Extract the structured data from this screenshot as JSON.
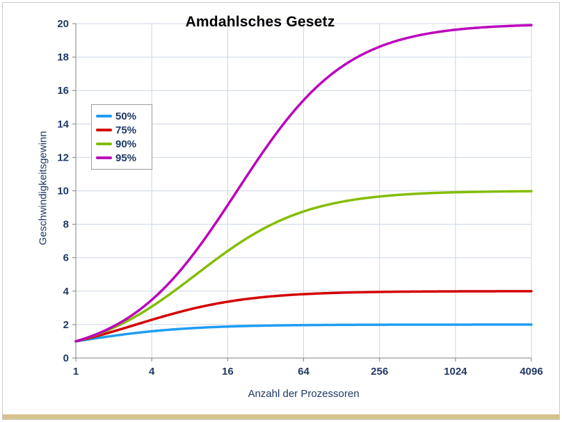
{
  "page": {
    "background": "#ffffff",
    "frame_border_color": "#c9c9c9",
    "bottom_strip_color": "#d5c38d"
  },
  "chart_data": {
    "type": "line",
    "title": "Amdahlsches Gesetz",
    "xlabel": "Anzahl der Prozessoren",
    "ylabel": "Geschwindigkeitsgewinn",
    "x_scale": "log2",
    "x_range": [
      1,
      4096
    ],
    "x_ticks": [
      1,
      4,
      16,
      64,
      256,
      1024,
      4096
    ],
    "ylim": [
      0,
      20
    ],
    "y_tick_step": 2,
    "grid": true,
    "legend_position": "upper-left-inside",
    "x": [
      1,
      2,
      4,
      8,
      16,
      32,
      64,
      128,
      256,
      512,
      1024,
      2048,
      4096
    ],
    "series": [
      {
        "name": "50%",
        "parallel_fraction": 0.5,
        "color": "#1e9df2",
        "values": [
          1,
          1.33,
          1.6,
          1.78,
          1.88,
          1.94,
          1.97,
          1.98,
          1.99,
          2.0,
          2.0,
          2.0,
          2.0
        ]
      },
      {
        "name": "75%",
        "parallel_fraction": 0.75,
        "color": "#d40000",
        "values": [
          1,
          1.6,
          2.29,
          2.91,
          3.37,
          3.66,
          3.82,
          3.91,
          3.95,
          3.98,
          3.99,
          3.99,
          4.0
        ]
      },
      {
        "name": "90%",
        "parallel_fraction": 0.9,
        "color": "#84bd00",
        "values": [
          1,
          1.82,
          3.08,
          4.71,
          6.4,
          7.8,
          8.77,
          9.34,
          9.66,
          9.83,
          9.91,
          9.96,
          9.98
        ]
      },
      {
        "name": "95%",
        "parallel_fraction": 0.95,
        "color": "#bb00bb",
        "values": [
          1,
          1.9,
          3.48,
          5.93,
          9.14,
          12.55,
          15.42,
          17.42,
          18.62,
          19.28,
          19.64,
          19.82,
          19.91
        ]
      }
    ],
    "styles": {
      "grid_color": "#ccd6e5",
      "axis_color": "#7f7f7f",
      "tick_label_color": "#1f3864",
      "axis_title_color": "#1f3864",
      "title_color": "#000000",
      "legend_border_color": "#999999",
      "curve_width": 3.5
    }
  }
}
